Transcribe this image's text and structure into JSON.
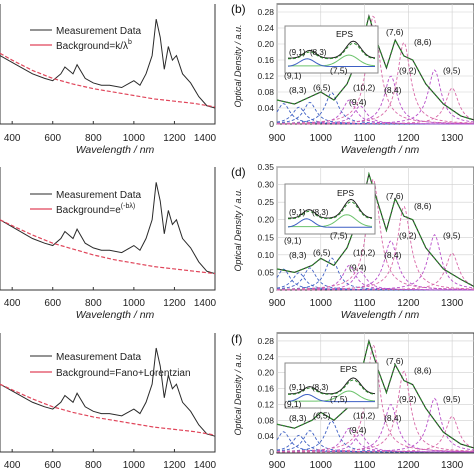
{
  "rows": [
    {
      "left": {
        "xlabel": "Wavelength / nm",
        "xticks": [
          400,
          600,
          800,
          1000,
          1200,
          1400
        ],
        "legend": [
          "Measurement Data",
          "Background=k/λ"
        ],
        "legend_sup": "b"
      },
      "right": {
        "panel_label": "(b)",
        "ylabel": "Optical Density / a.u.",
        "xlabel": "Wavelength / nm",
        "yticks": [
          "0",
          "0.04",
          "0.08",
          "0.12",
          "0.16",
          "0.20",
          "0.24",
          "0.28"
        ],
        "xticks": [
          "900",
          "1000",
          "1100",
          "1200",
          "1300"
        ],
        "inset_label": "EPS",
        "inset_peaks": [
          "(9,1)",
          "(8,3)"
        ],
        "peaks": [
          "(9,1)",
          "(8,3)",
          "(6,5)",
          "(7,5)",
          "(10,2)",
          "(9,4)",
          "(8,4)",
          "(7,6)",
          "(9,2)",
          "(8,6)",
          "(9,5)"
        ]
      }
    },
    {
      "left": {
        "xlabel": "Wavelength / nm",
        "xticks": [
          400,
          600,
          800,
          1000,
          1200,
          1400
        ],
        "legend": [
          "Measurement Data",
          "Background=e"
        ],
        "legend_sup": "(-bλ)"
      },
      "right": {
        "panel_label": "(d)",
        "ylabel": "Optical Density / a.u.",
        "xlabel": "Wavelength / nm",
        "yticks": [
          "0",
          "0.05",
          "0.10",
          "0.15",
          "0.20",
          "0.25",
          "0.30",
          "0.35"
        ],
        "xticks": [
          "900",
          "1000",
          "1100",
          "1200",
          "1300"
        ],
        "inset_label": "EPS",
        "inset_peaks": [
          "(9,1)",
          "(8,3)"
        ],
        "peaks": [
          "(9,1)",
          "(8,3)",
          "(6,5)",
          "(7,5)",
          "(10,2)",
          "(9,4)",
          "(8,4)",
          "(7,6)",
          "(9,2)",
          "(8,6)",
          "(9,5)"
        ]
      }
    },
    {
      "left": {
        "xlabel": "Wavelength / nm",
        "xticks": [
          400,
          600,
          800,
          1000,
          1200,
          1400
        ],
        "legend": [
          "Measurement Data",
          "Background=Fano+Lorentzian"
        ],
        "legend_sup": ""
      },
      "right": {
        "panel_label": "(f)",
        "ylabel": "Optical Density / a.u.",
        "xlabel": "Wavelength / nm",
        "yticks": [
          "0",
          "0.04",
          "0.08",
          "0.12",
          "0.16",
          "0.20",
          "0.24",
          "0.28"
        ],
        "xticks": [
          "900",
          "1000",
          "1100",
          "1200",
          "1300"
        ],
        "inset_label": "EPS",
        "inset_peaks": [
          "(9,1)",
          "(8,3)"
        ],
        "peaks": [
          "(9,1)",
          "(8,3)",
          "(6,5)",
          "(7,5)",
          "(10,2)",
          "(9,4)",
          "(8,4)",
          "(7,6)",
          "(9,2)",
          "(8,6)",
          "(9,5)"
        ]
      }
    }
  ],
  "colors": {
    "measurement": "#2a2a2a",
    "background": "#e0455a",
    "fit": "#2e8b2e",
    "component_blue": "#3d5fc4",
    "component_purple": "#b84fc9",
    "component_pink": "#d86aa8",
    "component_green": "#6cc36c",
    "grid": "#cfcfcf"
  },
  "chart_data": [
    {
      "type": "line",
      "xlabel": "Wavelength / nm",
      "xlim": [
        340,
        1400
      ],
      "series": [
        {
          "name": "Measurement Data",
          "x": [
            340,
            400,
            500,
            560,
            600,
            640,
            660,
            700,
            720,
            760,
            800,
            840,
            880,
            940,
            980,
            1000,
            1030,
            1060,
            1090,
            1110,
            1130,
            1150,
            1170,
            1190,
            1210,
            1240,
            1280,
            1320,
            1360,
            1400
          ],
          "y": [
            0.3,
            0.27,
            0.22,
            0.2,
            0.19,
            0.22,
            0.25,
            0.22,
            0.26,
            0.2,
            0.18,
            0.17,
            0.17,
            0.16,
            0.18,
            0.19,
            0.17,
            0.22,
            0.3,
            0.46,
            0.38,
            0.24,
            0.34,
            0.28,
            0.3,
            0.22,
            0.18,
            0.12,
            0.08,
            0.07
          ]
        },
        {
          "name": "Background=k/λ",
          "x": [
            340,
            400,
            500,
            600,
            700,
            800,
            900,
            1000,
            1100,
            1200,
            1300,
            1400
          ],
          "y": [
            0.31,
            0.28,
            0.235,
            0.2,
            0.175,
            0.155,
            0.14,
            0.125,
            0.11,
            0.1,
            0.09,
            0.075
          ]
        }
      ]
    },
    {
      "type": "line",
      "ylabel": "Optical Density / a.u.",
      "xlabel": "Wavelength / nm",
      "xlim": [
        900,
        1350
      ],
      "ylim": [
        0,
        0.3
      ],
      "series": [
        {
          "x": [
            900,
            940,
            980,
            1000,
            1030,
            1060,
            1090,
            1110,
            1130,
            1150,
            1170,
            1190,
            1210,
            1240,
            1280,
            1320,
            1350
          ],
          "y": [
            0.06,
            0.05,
            0.07,
            0.08,
            0.06,
            0.1,
            0.18,
            0.27,
            0.2,
            0.14,
            0.21,
            0.17,
            0.16,
            0.1,
            0.05,
            0.02,
            0.01
          ]
        }
      ]
    },
    {
      "type": "line",
      "xlabel": "Wavelength / nm",
      "xlim": [
        340,
        1400
      ],
      "series": [
        {
          "name": "Measurement Data",
          "x": [
            340,
            400,
            500,
            560,
            600,
            640,
            660,
            700,
            720,
            760,
            800,
            840,
            880,
            940,
            980,
            1000,
            1030,
            1060,
            1090,
            1110,
            1130,
            1150,
            1170,
            1190,
            1210,
            1240,
            1280,
            1320,
            1360,
            1400
          ],
          "y": [
            0.3,
            0.27,
            0.22,
            0.2,
            0.19,
            0.22,
            0.25,
            0.22,
            0.26,
            0.2,
            0.18,
            0.17,
            0.17,
            0.16,
            0.18,
            0.19,
            0.17,
            0.22,
            0.3,
            0.46,
            0.38,
            0.24,
            0.34,
            0.28,
            0.3,
            0.22,
            0.18,
            0.12,
            0.08,
            0.07
          ]
        },
        {
          "name": "Background=e(-bλ)",
          "x": [
            340,
            400,
            500,
            600,
            700,
            800,
            900,
            1000,
            1100,
            1200,
            1300,
            1400
          ],
          "y": [
            0.3,
            0.275,
            0.235,
            0.2,
            0.175,
            0.15,
            0.13,
            0.115,
            0.1,
            0.09,
            0.08,
            0.07
          ]
        }
      ]
    },
    {
      "type": "line",
      "ylabel": "Optical Density / a.u.",
      "xlabel": "Wavelength / nm",
      "xlim": [
        900,
        1350
      ],
      "ylim": [
        0,
        0.35
      ],
      "series": [
        {
          "x": [
            900,
            940,
            980,
            1000,
            1030,
            1060,
            1090,
            1110,
            1130,
            1150,
            1170,
            1190,
            1210,
            1240,
            1280,
            1320,
            1350
          ],
          "y": [
            0.06,
            0.05,
            0.07,
            0.09,
            0.07,
            0.12,
            0.22,
            0.33,
            0.25,
            0.17,
            0.26,
            0.21,
            0.2,
            0.12,
            0.06,
            0.03,
            0.01
          ]
        }
      ]
    },
    {
      "type": "line",
      "xlabel": "Wavelength / nm",
      "xlim": [
        340,
        1400
      ],
      "series": [
        {
          "name": "Measurement Data",
          "x": [
            340,
            400,
            500,
            560,
            600,
            640,
            660,
            700,
            720,
            760,
            800,
            840,
            880,
            940,
            980,
            1000,
            1030,
            1060,
            1090,
            1110,
            1130,
            1150,
            1170,
            1190,
            1210,
            1240,
            1280,
            1320,
            1360,
            1400
          ],
          "y": [
            0.3,
            0.27,
            0.22,
            0.2,
            0.19,
            0.22,
            0.25,
            0.22,
            0.26,
            0.2,
            0.18,
            0.17,
            0.17,
            0.16,
            0.18,
            0.19,
            0.17,
            0.22,
            0.3,
            0.46,
            0.38,
            0.24,
            0.34,
            0.28,
            0.3,
            0.22,
            0.18,
            0.12,
            0.08,
            0.07
          ]
        },
        {
          "name": "Background=Fano+Lorentzian",
          "x": [
            340,
            400,
            500,
            600,
            700,
            800,
            900,
            1000,
            1100,
            1200,
            1300,
            1400
          ],
          "y": [
            0.3,
            0.275,
            0.235,
            0.2,
            0.175,
            0.155,
            0.14,
            0.125,
            0.11,
            0.1,
            0.09,
            0.075
          ]
        }
      ]
    },
    {
      "type": "line",
      "ylabel": "Optical Density / a.u.",
      "xlabel": "Wavelength / nm",
      "xlim": [
        900,
        1350
      ],
      "ylim": [
        0,
        0.3
      ],
      "series": [
        {
          "x": [
            900,
            940,
            980,
            1000,
            1030,
            1060,
            1090,
            1110,
            1130,
            1150,
            1170,
            1190,
            1210,
            1240,
            1280,
            1320,
            1350
          ],
          "y": [
            0.07,
            0.06,
            0.08,
            0.1,
            0.08,
            0.11,
            0.19,
            0.28,
            0.21,
            0.15,
            0.22,
            0.18,
            0.17,
            0.11,
            0.05,
            0.02,
            0.01
          ]
        }
      ]
    }
  ]
}
